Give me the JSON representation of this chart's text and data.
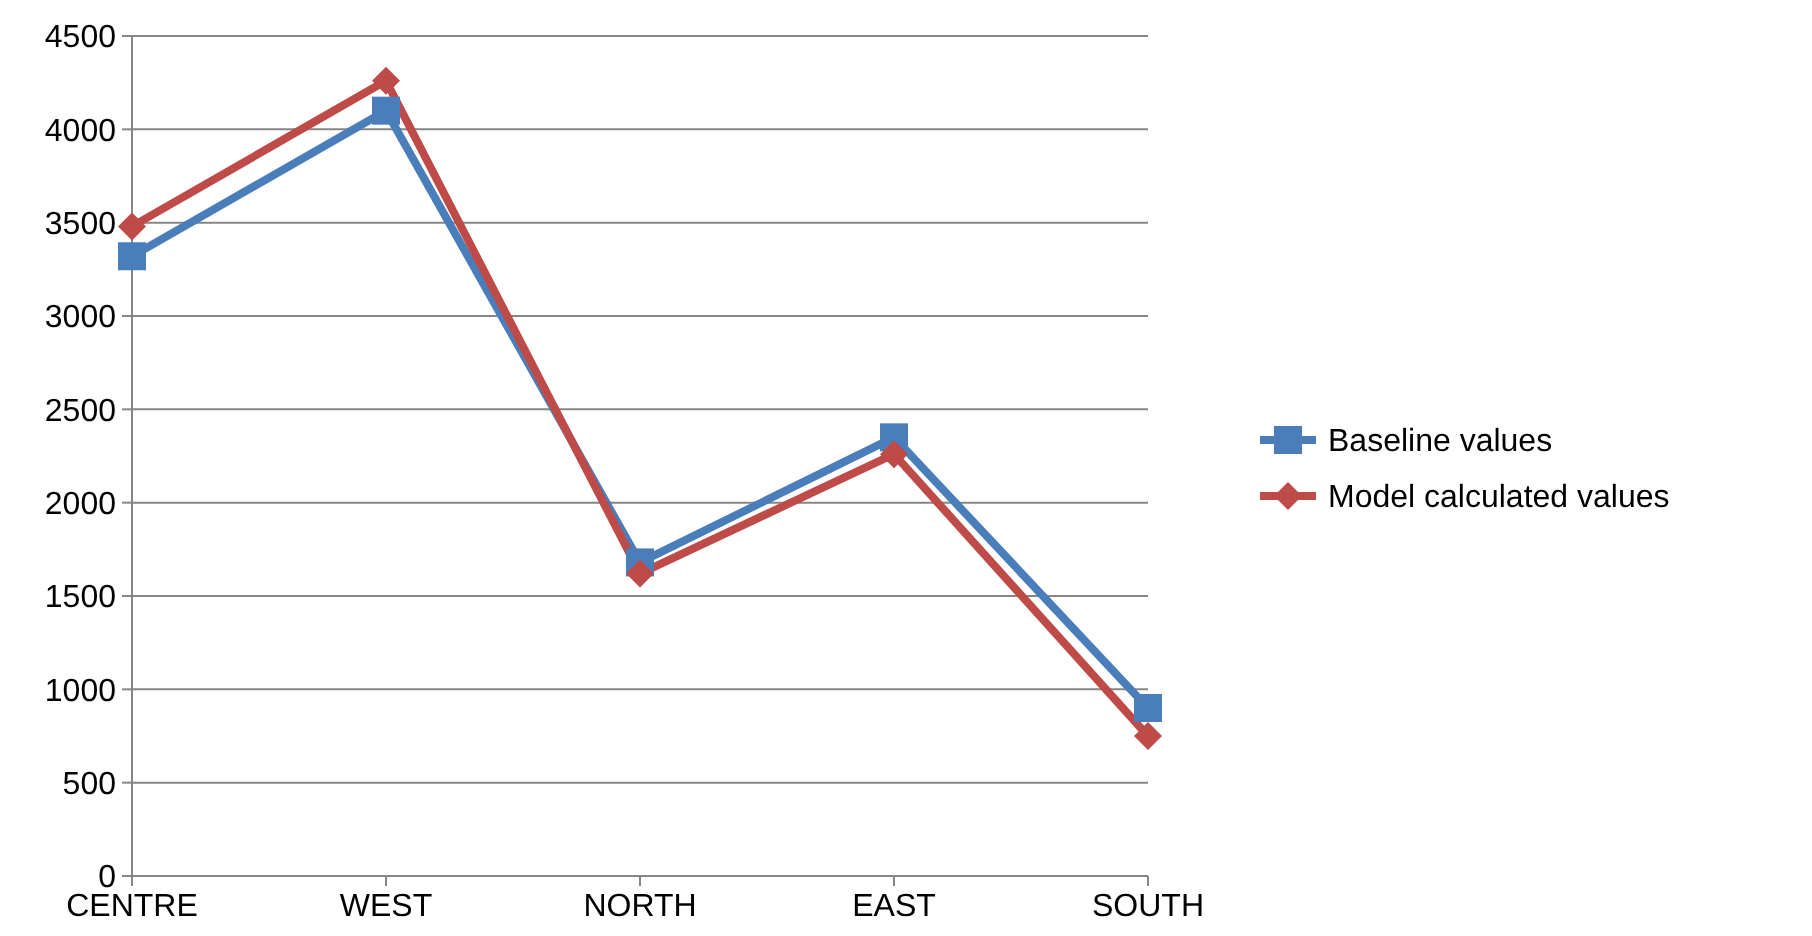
{
  "chart_data": {
    "type": "line",
    "categories": [
      "CENTRE",
      "WEST",
      "NORTH",
      "EAST",
      "SOUTH"
    ],
    "series": [
      {
        "name": "Baseline values",
        "color": "#4a7ebb",
        "marker": "square",
        "values": [
          3320,
          4100,
          1680,
          2350,
          900
        ]
      },
      {
        "name": "Model calculated values",
        "color": "#be4b48",
        "marker": "diamond",
        "values": [
          3480,
          4260,
          1620,
          2260,
          750
        ]
      }
    ],
    "ylim": [
      0,
      4500
    ],
    "yticks": [
      0,
      500,
      1000,
      1500,
      2000,
      2500,
      3000,
      3500,
      4000,
      4500
    ],
    "grid": "y",
    "legend": "right",
    "line_style": "solid"
  }
}
